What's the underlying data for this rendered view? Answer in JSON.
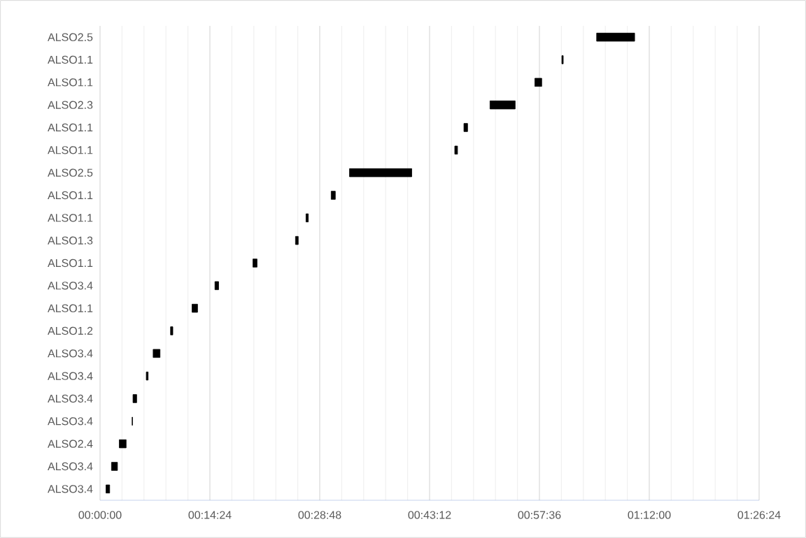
{
  "chart_data": {
    "type": "bar",
    "orientation": "horizontal",
    "color": "#000000",
    "grid": "x",
    "categories": [
      "ALSO2.5",
      "ALSO1.1",
      "ALSO1.1",
      "ALSO2.3",
      "ALSO1.1",
      "ALSO1.1",
      "ALSO2.5",
      "ALSO1.1",
      "ALSO1.1",
      "ALSO1.3",
      "ALSO1.1",
      "ALSO3.4",
      "ALSO1.1",
      "ALSO1.2",
      "ALSO3.4",
      "ALSO3.4",
      "ALSO3.4",
      "ALSO3.4",
      "ALSO2.4",
      "ALSO3.4",
      "ALSO3.4"
    ],
    "base": [
      1.085,
      1.009,
      0.95,
      0.852,
      0.795,
      0.775,
      0.545,
      0.505,
      0.45,
      0.427,
      0.334,
      0.251,
      0.201,
      0.154,
      0.116,
      0.101,
      0.072,
      0.07,
      0.042,
      0.025,
      0.013
    ],
    "values": [
      0.083,
      0.003,
      0.015,
      0.055,
      0.008,
      0.006,
      0.136,
      0.009,
      0.005,
      0.006,
      0.009,
      0.008,
      0.012,
      0.005,
      0.015,
      0.004,
      0.008,
      0.001,
      0.015,
      0.013,
      0.008
    ],
    "xlim": [
      0,
      1.44
    ],
    "xticks": [
      {
        "value": 0,
        "label": "00:00:00"
      },
      {
        "value": 0.048,
        "label": null
      },
      {
        "value": 0.096,
        "label": null
      },
      {
        "value": 0.144,
        "label": null
      },
      {
        "value": 0.192,
        "label": null
      },
      {
        "value": 0.24,
        "label": "00:14:24"
      },
      {
        "value": 0.288,
        "label": null
      },
      {
        "value": 0.336,
        "label": null
      },
      {
        "value": 0.384,
        "label": null
      },
      {
        "value": 0.432,
        "label": null
      },
      {
        "value": 0.48,
        "label": "00:28:48"
      },
      {
        "value": 0.528,
        "label": null
      },
      {
        "value": 0.576,
        "label": null
      },
      {
        "value": 0.624,
        "label": null
      },
      {
        "value": 0.672,
        "label": null
      },
      {
        "value": 0.72,
        "label": "00:43:12"
      },
      {
        "value": 0.768,
        "label": null
      },
      {
        "value": 0.816,
        "label": null
      },
      {
        "value": 0.864,
        "label": null
      },
      {
        "value": 0.912,
        "label": null
      },
      {
        "value": 0.96,
        "label": "00:57:36"
      },
      {
        "value": 1.008,
        "label": null
      },
      {
        "value": 1.056,
        "label": null
      },
      {
        "value": 1.104,
        "label": null
      },
      {
        "value": 1.152,
        "label": null
      },
      {
        "value": 1.2,
        "label": "01:12:00"
      },
      {
        "value": 1.248,
        "label": null
      },
      {
        "value": 1.296,
        "label": null
      },
      {
        "value": 1.344,
        "label": null
      },
      {
        "value": 1.392,
        "label": null
      },
      {
        "value": 1.44,
        "label": "01:26:24"
      }
    ]
  }
}
